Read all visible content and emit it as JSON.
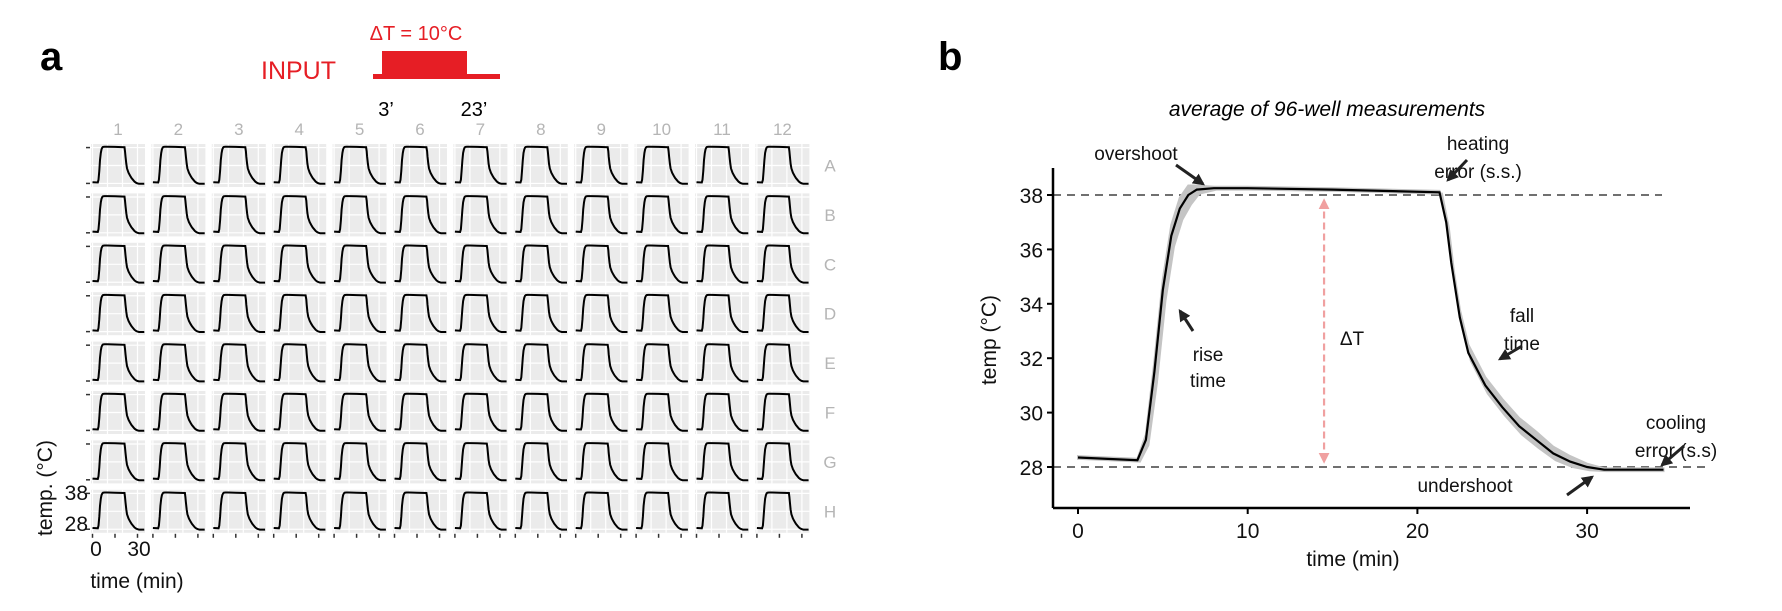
{
  "panel_labels": {
    "a": "a",
    "b": "b"
  },
  "colors": {
    "input_red": "#e61e25",
    "band": "#c4c4c4",
    "delta_arrow": "#f0a0a0",
    "cell_bg": "#ebebeb",
    "dashed": "#707070"
  },
  "chart_data": [
    {
      "type": "line",
      "panel": "a",
      "title": "",
      "input": {
        "label": "INPUT",
        "delta_label": "ΔT = 10°C",
        "start_label": "3’",
        "end_label": "23’",
        "start_min": 3,
        "end_min": 23,
        "delta_T": 10
      },
      "columns": [
        "1",
        "2",
        "3",
        "4",
        "5",
        "6",
        "7",
        "8",
        "9",
        "10",
        "11",
        "12"
      ],
      "rows": [
        "A",
        "B",
        "C",
        "D",
        "E",
        "F",
        "G",
        "H"
      ],
      "ylabel": "temp. (°C)",
      "xlabel": "time (min)",
      "yticks": [
        "38",
        "28"
      ],
      "xticks": [
        "0",
        "30"
      ],
      "ylim": [
        27,
        39
      ],
      "xlim": [
        -1,
        35
      ],
      "grid": true
    },
    {
      "type": "line",
      "panel": "b",
      "title": "average of 96-well measurements",
      "xlabel": "time (min)",
      "ylabel": "temp (°C)",
      "xlim": [
        -1.5,
        36
      ],
      "ylim": [
        26.5,
        39
      ],
      "xticks": [
        "0",
        "10",
        "20",
        "30"
      ],
      "yticks": [
        "28",
        "30",
        "32",
        "34",
        "36",
        "38"
      ],
      "reference_lines": [
        38,
        28
      ],
      "delta_T_label": "ΔT",
      "series": [
        {
          "name": "mean",
          "x": [
            0,
            3.5,
            4,
            4.5,
            5,
            5.5,
            6,
            6.5,
            7,
            8,
            10,
            15,
            21.3,
            21.7,
            22,
            22.5,
            23,
            24,
            25,
            26,
            27,
            28,
            29,
            30,
            31,
            32,
            34.5
          ],
          "y": [
            28.35,
            28.25,
            29.0,
            31.5,
            34.5,
            36.5,
            37.5,
            38.0,
            38.2,
            38.25,
            38.25,
            38.2,
            38.1,
            37.0,
            35.5,
            33.5,
            32.2,
            31.0,
            30.2,
            29.5,
            29.0,
            28.5,
            28.2,
            28.0,
            27.9,
            27.9,
            27.9
          ],
          "sd": [
            0.05,
            0.05,
            0.2,
            0.4,
            0.4,
            0.4,
            0.4,
            0.35,
            0.15,
            0.05,
            0.05,
            0.05,
            0.05,
            0.2,
            0.3,
            0.3,
            0.3,
            0.3,
            0.3,
            0.3,
            0.3,
            0.25,
            0.2,
            0.12,
            0.05,
            0.05,
            0.05
          ]
        }
      ],
      "annotations": {
        "overshoot": "overshoot",
        "heating_1": "heating",
        "heating_2": "error (s.s.)",
        "rise_1": "rise",
        "rise_2": "time",
        "fall_1": "fall",
        "fall_2": "time",
        "cooling_1": "cooling",
        "cooling_2": "error (s.s)",
        "undershoot": "undershoot"
      }
    }
  ]
}
